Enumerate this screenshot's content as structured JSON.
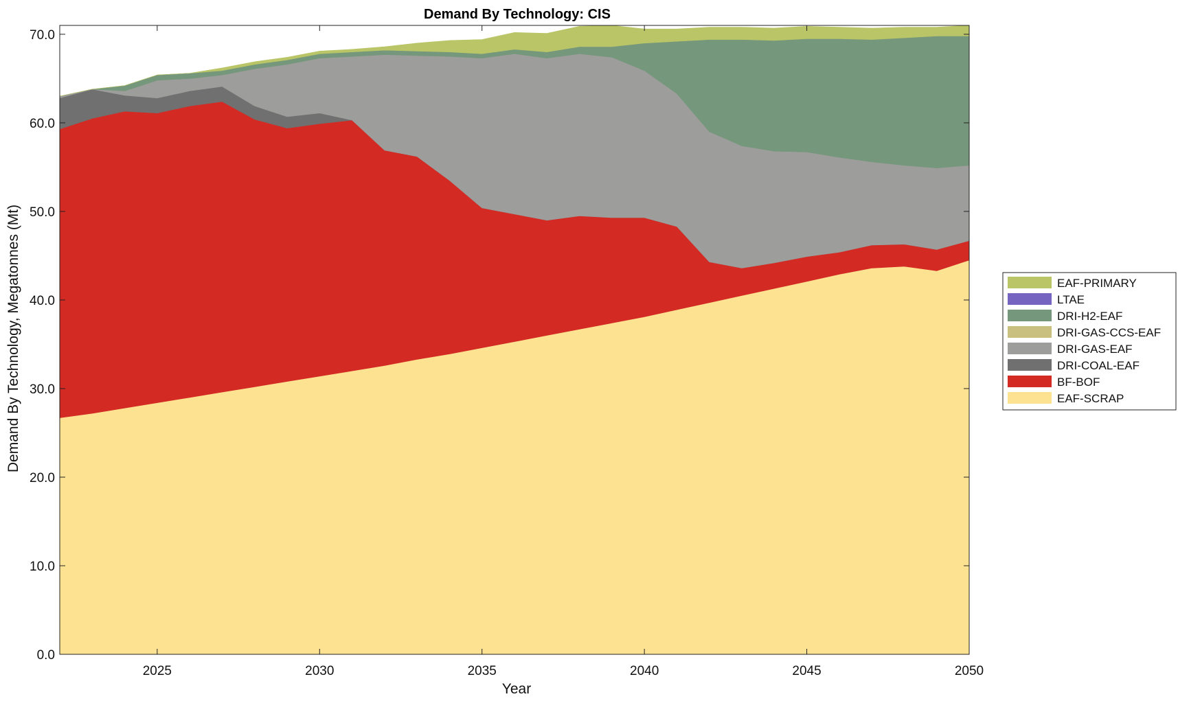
{
  "chart_data": {
    "type": "area",
    "stacked": true,
    "title": "Demand By Technology: CIS",
    "xlabel": "Year",
    "ylabel": "Demand By Technology, Megatonnes (Mt)",
    "xlim": [
      2022,
      2050
    ],
    "ylim": [
      0,
      71
    ],
    "xticks": [
      2025,
      2030,
      2035,
      2040,
      2045,
      2050
    ],
    "yticks": [
      "0.0",
      "10.0",
      "20.0",
      "30.0",
      "40.0",
      "50.0",
      "60.0",
      "70.0"
    ],
    "ytick_values": [
      0,
      10,
      20,
      30,
      40,
      50,
      60,
      70
    ],
    "legend_position": "right",
    "x": [
      2022,
      2023,
      2024,
      2025,
      2026,
      2027,
      2028,
      2029,
      2030,
      2031,
      2032,
      2033,
      2034,
      2035,
      2036,
      2037,
      2038,
      2039,
      2040,
      2041,
      2042,
      2043,
      2044,
      2045,
      2046,
      2047,
      2048,
      2049,
      2050
    ],
    "series": [
      {
        "name": "EAF-SCRAP",
        "color": "#FDE291",
        "values": [
          26.7,
          27.2,
          27.8,
          28.4,
          29.0,
          29.6,
          30.2,
          30.8,
          31.4,
          32.0,
          32.6,
          33.3,
          33.9,
          34.6,
          35.3,
          36.0,
          36.7,
          37.4,
          38.1,
          38.9,
          39.7,
          40.5,
          41.3,
          42.1,
          42.9,
          43.6,
          43.8,
          43.3,
          44.5
        ]
      },
      {
        "name": "BF-BOF",
        "color": "#D42A24",
        "values": [
          32.6,
          33.3,
          33.5,
          32.7,
          32.9,
          32.8,
          30.2,
          28.6,
          28.5,
          28.3,
          24.3,
          22.9,
          19.6,
          15.8,
          14.4,
          13.0,
          12.8,
          11.9,
          11.2,
          9.4,
          4.6,
          3.1,
          2.9,
          2.8,
          2.5,
          2.6,
          2.5,
          2.4,
          2.2
        ]
      },
      {
        "name": "DRI-COAL-EAF",
        "color": "#707070",
        "values": [
          3.5,
          3.3,
          1.8,
          1.7,
          1.7,
          1.7,
          1.5,
          1.3,
          1.2,
          0,
          0,
          0,
          0,
          0,
          0,
          0,
          0,
          0,
          0,
          0,
          0,
          0,
          0,
          0,
          0,
          0,
          0,
          0,
          0
        ]
      },
      {
        "name": "DRI-GAS-EAF",
        "color": "#9D9D9B",
        "values": [
          0.2,
          0,
          0.5,
          2.0,
          1.4,
          1.3,
          4.2,
          5.9,
          6.2,
          7.2,
          10.8,
          11.4,
          14.0,
          16.9,
          18.1,
          18.3,
          18.3,
          18.1,
          16.6,
          15.0,
          14.7,
          13.8,
          12.6,
          11.8,
          10.7,
          9.4,
          8.9,
          9.2,
          8.5
        ]
      },
      {
        "name": "DRI-GAS-CCS-EAF",
        "color": "#C9BF7E",
        "values": [
          0,
          0,
          0,
          0,
          0,
          0,
          0,
          0,
          0,
          0,
          0,
          0,
          0,
          0,
          0,
          0,
          0,
          0,
          0,
          0,
          0,
          0,
          0,
          0,
          0,
          0,
          0,
          0,
          0
        ]
      },
      {
        "name": "DRI-H2-EAF",
        "color": "#75977B",
        "values": [
          0,
          0,
          0.6,
          0.6,
          0.6,
          0.5,
          0.5,
          0.5,
          0.5,
          0.5,
          0.5,
          0.5,
          0.5,
          0.5,
          0.5,
          0.7,
          0.8,
          1.2,
          3.1,
          5.9,
          10.4,
          12.0,
          12.5,
          12.8,
          13.4,
          13.8,
          14.4,
          14.9,
          14.6
        ]
      },
      {
        "name": "LTAE",
        "color": "#7565C1",
        "values": [
          0,
          0,
          0,
          0,
          0,
          0,
          0,
          0,
          0,
          0,
          0,
          0,
          0,
          0,
          0,
          0,
          0,
          0,
          0,
          0,
          0,
          0,
          0,
          0,
          0,
          0,
          0,
          0,
          0
        ]
      },
      {
        "name": "EAF-PRIMARY",
        "color": "#B9C566",
        "values": [
          0,
          0,
          0,
          0,
          0,
          0.3,
          0.3,
          0.3,
          0.3,
          0.3,
          0.4,
          0.9,
          1.3,
          1.6,
          1.9,
          2.1,
          2.3,
          2.4,
          1.6,
          1.4,
          1.4,
          1.4,
          1.4,
          1.4,
          1.3,
          1.3,
          1.2,
          1.0,
          1.2
        ]
      }
    ],
    "legend_order": [
      "EAF-PRIMARY",
      "LTAE",
      "DRI-H2-EAF",
      "DRI-GAS-CCS-EAF",
      "DRI-GAS-EAF",
      "DRI-COAL-EAF",
      "BF-BOF",
      "EAF-SCRAP"
    ]
  }
}
